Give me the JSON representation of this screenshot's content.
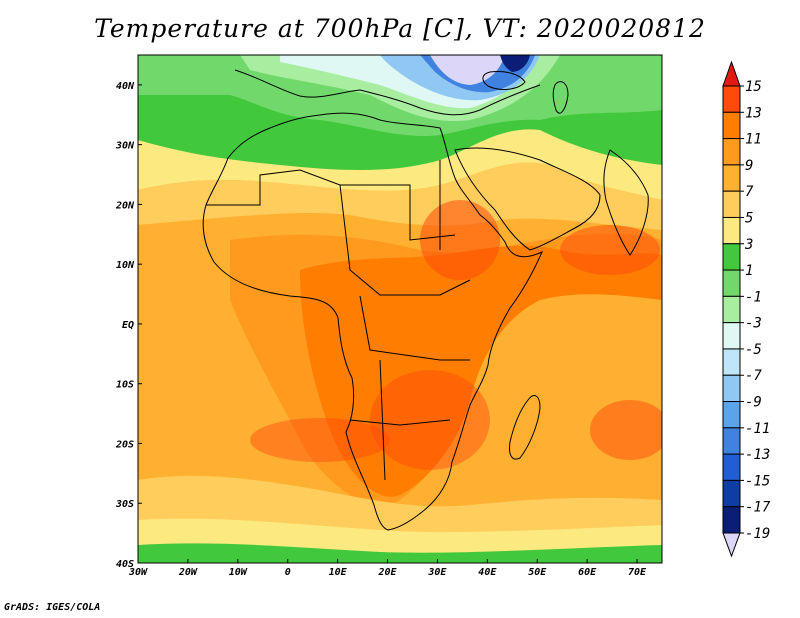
{
  "title": "Temperature at 700hPa [C], VT: 2020020812",
  "credit": "GrADS: IGES/COLA",
  "map": {
    "lon_range": [
      -30,
      75
    ],
    "lat_range": [
      -40,
      45
    ],
    "lon_ticks": [
      {
        "value": -30,
        "label": "30W"
      },
      {
        "value": -20,
        "label": "20W"
      },
      {
        "value": -10,
        "label": "10W"
      },
      {
        "value": 0,
        "label": "0"
      },
      {
        "value": 10,
        "label": "10E"
      },
      {
        "value": 20,
        "label": "20E"
      },
      {
        "value": 30,
        "label": "30E"
      },
      {
        "value": 40,
        "label": "40E"
      },
      {
        "value": 50,
        "label": "50E"
      },
      {
        "value": 60,
        "label": "60E"
      },
      {
        "value": 70,
        "label": "70E"
      }
    ],
    "lat_ticks": [
      {
        "value": 40,
        "label": "40N"
      },
      {
        "value": 30,
        "label": "30N"
      },
      {
        "value": 20,
        "label": "20N"
      },
      {
        "value": 10,
        "label": "10N"
      },
      {
        "value": 0,
        "label": "EQ"
      },
      {
        "value": -10,
        "label": "10S"
      },
      {
        "value": -20,
        "label": "20S"
      },
      {
        "value": -30,
        "label": "30S"
      },
      {
        "value": -40,
        "label": "40S"
      }
    ]
  },
  "colorbar": {
    "labels": [
      "15",
      "13",
      "11",
      "9",
      "7",
      "5",
      "3",
      "1",
      "-1",
      "-3",
      "-5",
      "-7",
      "-9",
      "-11",
      "-13",
      "-15",
      "-17",
      "-19"
    ],
    "colors": [
      "#e11a12",
      "#ff4a0a",
      "#ff7d00",
      "#ff9a1e",
      "#ffb030",
      "#ffcd5c",
      "#fce97f",
      "#42c83c",
      "#71d96b",
      "#a9eea0",
      "#dff8f3",
      "#bfe6f8",
      "#8fc9f3",
      "#5aa4ec",
      "#3f82e0",
      "#1f5ed4",
      "#0e3da6",
      "#0a1e77",
      "#dcd6f8"
    ]
  }
}
